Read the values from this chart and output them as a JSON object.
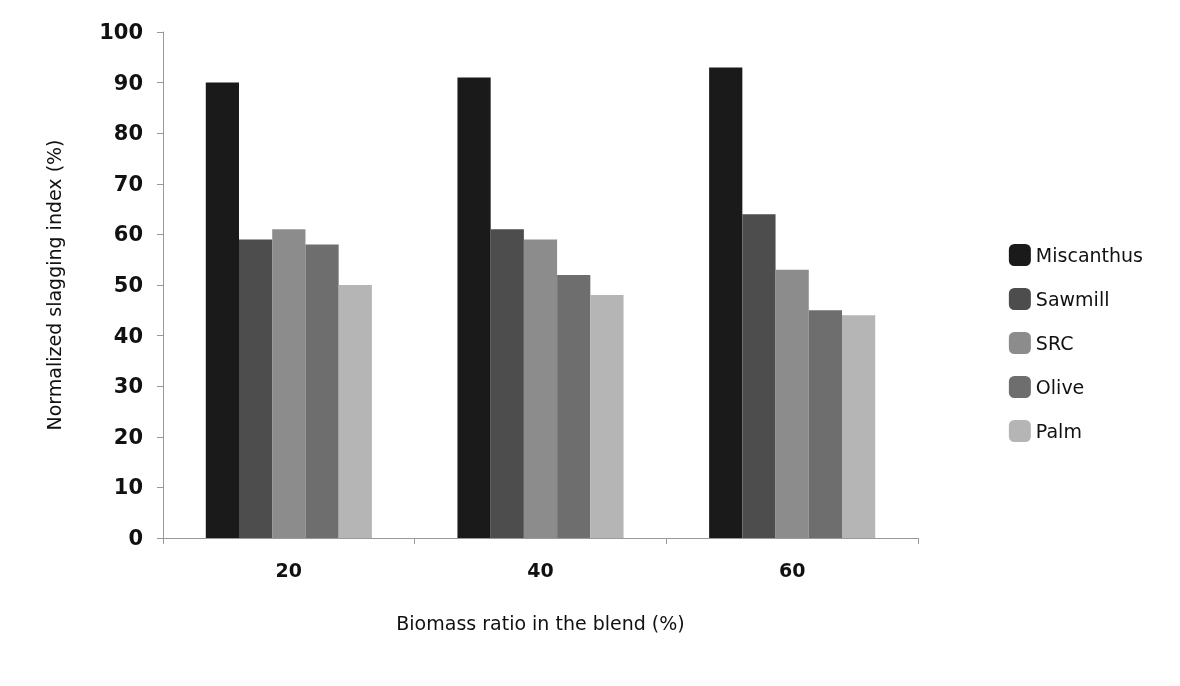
{
  "chart_data": {
    "type": "bar",
    "xlabel": "Biomass ratio in the blend (%)",
    "ylabel": "Normalized slagging index (%)",
    "categories": [
      "20",
      "40",
      "60"
    ],
    "series": [
      {
        "name": "Miscanthus",
        "color": "#1a1a1a",
        "values": [
          90,
          91,
          93
        ]
      },
      {
        "name": "Sawmill",
        "color": "#4d4d4d",
        "values": [
          59,
          61,
          64
        ]
      },
      {
        "name": "SRC",
        "color": "#8c8c8c",
        "values": [
          61,
          59,
          53
        ]
      },
      {
        "name": "Olive",
        "color": "#6e6e6e",
        "values": [
          58,
          52,
          45
        ]
      },
      {
        "name": "Palm",
        "color": "#b5b5b5",
        "values": [
          50,
          48,
          44
        ]
      }
    ],
    "ylim": [
      0,
      100
    ],
    "yticks": [
      0,
      10,
      20,
      30,
      40,
      50,
      60,
      70,
      80,
      90,
      100
    ],
    "grid": false,
    "legend": "right"
  }
}
